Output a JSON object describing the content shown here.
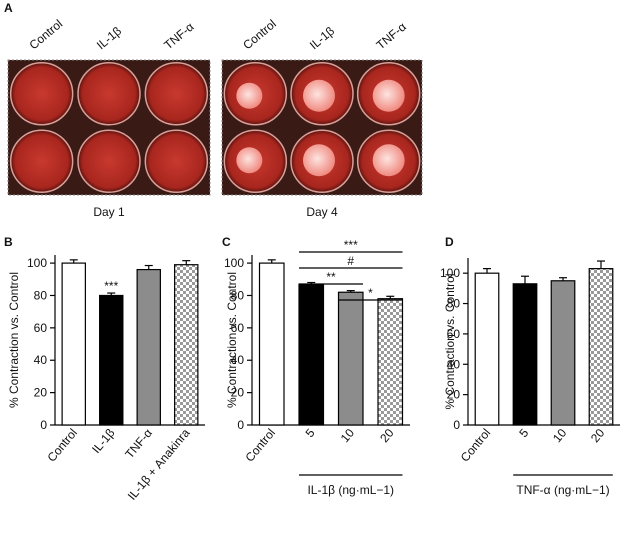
{
  "panel_a": {
    "label": "A",
    "plates": [
      {
        "labels": [
          "Control",
          "IL-1β",
          "TNF-α"
        ],
        "caption": "Day 1"
      },
      {
        "labels": [
          "Control",
          "IL-1β",
          "TNF-α"
        ],
        "caption": "Day 4"
      }
    ]
  },
  "chart_data": [
    {
      "type": "bar",
      "panel": "B",
      "ylabel": "% Contraction vs. Control",
      "categories": [
        "Control",
        "IL-1β",
        "TNF-α",
        "IL-1β + Anakinra"
      ],
      "values": [
        100,
        80,
        96,
        99
      ],
      "errors": [
        2,
        1.5,
        2.5,
        2.5
      ],
      "fills": [
        "#ffffff",
        "#000000",
        "#8c8c8c",
        "checker"
      ],
      "significance": [
        null,
        "***",
        null,
        null
      ],
      "ylim": [
        0,
        105
      ],
      "yticks": [
        0,
        20,
        40,
        60,
        80,
        100
      ]
    },
    {
      "type": "bar",
      "panel": "C",
      "ylabel": "% Contraction vs. Control",
      "categories": [
        "Control",
        "5",
        "10",
        "20"
      ],
      "group_label": "IL-1β (ng·mL−1)",
      "values": [
        100,
        87,
        82,
        78
      ],
      "errors": [
        2,
        1,
        1,
        1.5
      ],
      "fills": [
        "#ffffff",
        "#000000",
        "#8c8c8c",
        "checker"
      ],
      "comparisons": [
        {
          "from": 1,
          "to": 3,
          "label": "***"
        },
        {
          "from": 1,
          "to": 3,
          "label": "#"
        },
        {
          "from": 1,
          "to": 2,
          "label": "**"
        },
        {
          "from": 2,
          "to": 3,
          "label": "*"
        }
      ],
      "ylim": [
        0,
        105
      ],
      "yticks": [
        0,
        20,
        40,
        60,
        80,
        100
      ]
    },
    {
      "type": "bar",
      "panel": "D",
      "ylabel": "% Contraction vs. Control",
      "categories": [
        "Control",
        "5",
        "10",
        "20"
      ],
      "group_label": "TNF-α (ng·mL−1)",
      "values": [
        100,
        93,
        95,
        103
      ],
      "errors": [
        3,
        5,
        2,
        5
      ],
      "fills": [
        "#ffffff",
        "#000000",
        "#8c8c8c",
        "checker"
      ],
      "ylim": [
        0,
        110
      ],
      "yticks": [
        0,
        20,
        40,
        60,
        80,
        100
      ]
    }
  ]
}
